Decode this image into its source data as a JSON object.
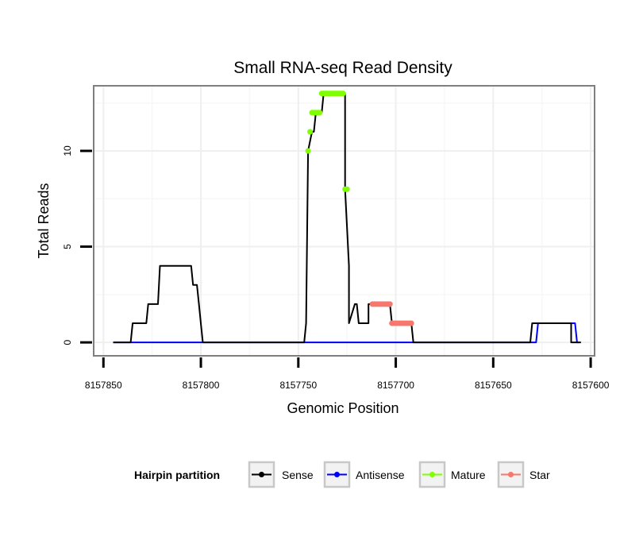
{
  "chart_data": {
    "type": "line",
    "title": "Small RNA-seq Read Density",
    "xlabel": "Genomic Position",
    "ylabel": "Total Reads",
    "xlim": [
      8157855,
      8157598
    ],
    "ylim": [
      -0.7,
      13.4
    ],
    "x_reversed": true,
    "grid": true,
    "x_ticks": [
      8157850,
      8157800,
      8157750,
      8157700,
      8157650,
      8157600
    ],
    "x_tick_labels": [
      "8157850",
      "8157800",
      "8157750",
      "8157700",
      "8157650",
      "8157600"
    ],
    "y_ticks": [
      0,
      5,
      10
    ],
    "y_tick_labels": [
      "0",
      "5",
      "10"
    ],
    "legend": {
      "title": "Hairpin partition",
      "placement": "bottom",
      "entries": [
        "Sense",
        "Antisense",
        "Mature",
        "Star"
      ]
    },
    "series": [
      {
        "name": "Sense",
        "color": "#000000",
        "marker": "line",
        "x": [
          8157845,
          8157836,
          8157835,
          8157828,
          8157827,
          8157822,
          8157821,
          8157805,
          8157804,
          8157802,
          8157801,
          8157800,
          8157799,
          8157747,
          8157746,
          8157745,
          8157743,
          8157742,
          8157741,
          8157738,
          8157737,
          8157737,
          8157735,
          8157734,
          8157734,
          8157732,
          8157731,
          8157726,
          8157726,
          8157724,
          8157724,
          8157721,
          8157720,
          8157719,
          8157718,
          8157717,
          8157716,
          8157714,
          8157714,
          8157712,
          8157711,
          8157703,
          8157702,
          8157692,
          8157691,
          8157631,
          8157630,
          8157610,
          8157610,
          8157605
        ],
        "y": [
          0,
          0,
          1,
          1,
          2,
          2,
          4,
          4,
          3,
          3,
          2,
          1,
          0,
          0,
          1,
          10,
          11,
          11,
          12,
          12,
          13,
          13,
          13,
          13,
          13,
          13,
          13,
          13,
          8,
          4,
          1,
          2,
          2,
          1,
          1,
          1,
          1,
          1,
          2,
          2,
          2,
          2,
          1,
          1,
          0,
          0,
          1,
          1,
          0,
          0
        ]
      },
      {
        "name": "Antisense",
        "color": "#0000ff",
        "marker": "line",
        "x": [
          8157845,
          8157628,
          8157627,
          8157608,
          8157607,
          8157606
        ],
        "y": [
          0,
          0,
          1,
          1,
          0,
          0
        ]
      },
      {
        "name": "Mature",
        "color": "#7fff00",
        "marker": "point",
        "x": [
          8157745,
          8157744,
          8157743,
          8157742,
          8157741,
          8157740,
          8157739,
          8157738,
          8157737,
          8157736,
          8157735,
          8157734,
          8157733,
          8157732,
          8157731,
          8157730,
          8157729,
          8157728,
          8157727,
          8157726,
          8157725
        ],
        "y": [
          10,
          11,
          12,
          12,
          12,
          12,
          12,
          13,
          13,
          13,
          13,
          13,
          13,
          13,
          13,
          13,
          13,
          13,
          13,
          8,
          8
        ]
      },
      {
        "name": "Star",
        "color": "#f8766d",
        "marker": "point",
        "x": [
          8157712,
          8157711,
          8157710,
          8157709,
          8157708,
          8157707,
          8157706,
          8157705,
          8157704,
          8157703,
          8157702,
          8157701,
          8157700,
          8157699,
          8157698,
          8157697,
          8157696,
          8157695,
          8157694,
          8157693,
          8157692
        ],
        "y": [
          2,
          2,
          2,
          2,
          2,
          2,
          2,
          2,
          2,
          2,
          1,
          1,
          1,
          1,
          1,
          1,
          1,
          1,
          1,
          1,
          1
        ]
      }
    ]
  }
}
